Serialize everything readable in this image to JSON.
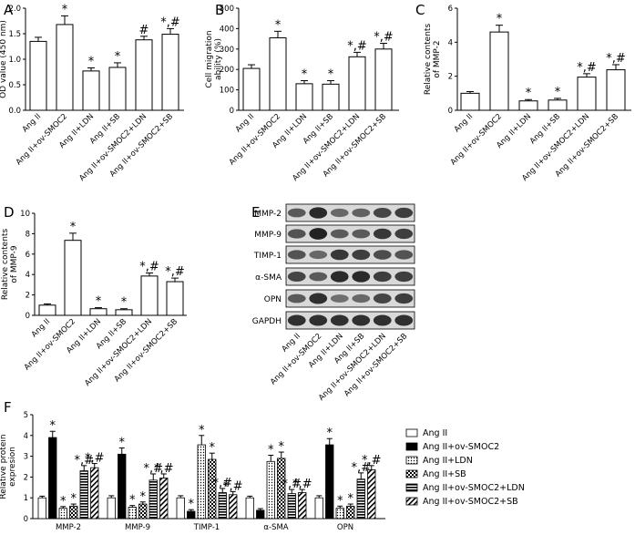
{
  "chart_data": [
    {
      "panel": "A",
      "type": "bar",
      "ylabel": "OD value (450 nm)",
      "ylim": [
        0,
        2.0
      ],
      "yticks": [
        "0.0",
        "0.5",
        "1.0",
        "1.5",
        "2.0"
      ],
      "categories": [
        "Ang II",
        "Ang II+ov-SMOC2",
        "Ang II+LDN",
        "Ang II+SB",
        "Ang II+ov-SMOC2+LDN",
        "Ang II+ov-SMOC2+SB"
      ],
      "values": [
        1.35,
        1.68,
        0.77,
        0.84,
        1.38,
        1.49
      ],
      "errors": [
        0.08,
        0.17,
        0.06,
        0.09,
        0.07,
        0.11
      ],
      "marks": [
        "",
        "*",
        "*",
        "*",
        "#",
        "*,#"
      ]
    },
    {
      "panel": "B",
      "type": "bar",
      "ylabel": "Cell migration ability (%)",
      "ylim": [
        0,
        500
      ],
      "yticks": [
        "0",
        "100",
        "200",
        "300",
        "400",
        "500"
      ],
      "categories": [
        "Ang II",
        "Ang II+ov-SMOC2",
        "Ang II+LDN",
        "Ang II+SB",
        "Ang II+ov-SMOC2+LDN",
        "Ang II+ov-SMOC2+SB"
      ],
      "values": [
        205,
        355,
        130,
        128,
        262,
        300
      ],
      "errors": [
        18,
        32,
        15,
        17,
        22,
        28
      ],
      "marks": [
        "",
        "*",
        "*",
        "*",
        "*,#",
        "*,#"
      ]
    },
    {
      "panel": "C",
      "type": "bar",
      "ylabel": "Relative contents of MMP-2",
      "ylim": [
        0,
        6
      ],
      "yticks": [
        "0",
        "2",
        "4",
        "6"
      ],
      "categories": [
        "Ang II",
        "Ang II+ov-SMOC2",
        "Ang II+LDN",
        "Ang II+SB",
        "Ang II+ov-SMOC2+LDN",
        "Ang II+ov-SMOC2+SB"
      ],
      "values": [
        1.0,
        4.6,
        0.55,
        0.6,
        1.95,
        2.38
      ],
      "errors": [
        0.1,
        0.4,
        0.08,
        0.1,
        0.2,
        0.3
      ],
      "marks": [
        "",
        "*",
        "*",
        "*",
        "*,#",
        "*,#"
      ]
    },
    {
      "panel": "D",
      "type": "bar",
      "ylabel": "Relative contents of MMP-9",
      "ylim": [
        0,
        10
      ],
      "yticks": [
        "0",
        "2",
        "4",
        "6",
        "8",
        "10"
      ],
      "categories": [
        "Ang II",
        "Ang II+ov-SMOC2",
        "Ang II+LDN",
        "Ang II+SB",
        "Ang II+ov-SMOC2+LDN",
        "Ang II+ov-SMOC2+SB"
      ],
      "values": [
        1.0,
        7.35,
        0.65,
        0.55,
        3.85,
        3.3
      ],
      "errors": [
        0.12,
        0.7,
        0.1,
        0.1,
        0.3,
        0.35
      ],
      "marks": [
        "",
        "*",
        "*",
        "*",
        "*,#",
        "*,#"
      ]
    },
    {
      "panel": "F",
      "type": "bar",
      "ylabel": "Relative protein expresion",
      "ylim": [
        0,
        5
      ],
      "yticks": [
        "0",
        "1",
        "2",
        "3",
        "4",
        "5"
      ],
      "categories": [
        "MMP-2",
        "MMP-9",
        "TIMP-1",
        "α-SMA",
        "OPN"
      ],
      "series": [
        {
          "name": "Ang II",
          "values": [
            1.0,
            1.0,
            1.0,
            1.0,
            1.0
          ],
          "errors": [
            0.08,
            0.1,
            0.1,
            0.08,
            0.1
          ]
        },
        {
          "name": "Ang II+ov-SMOC2",
          "values": [
            3.9,
            3.1,
            0.35,
            0.4,
            3.55
          ],
          "errors": [
            0.3,
            0.3,
            0.08,
            0.08,
            0.3
          ]
        },
        {
          "name": "Ang II+LDN",
          "values": [
            0.5,
            0.55,
            3.55,
            2.75,
            0.5
          ],
          "errors": [
            0.08,
            0.08,
            0.45,
            0.3,
            0.1
          ]
        },
        {
          "name": "Ang II+SB",
          "values": [
            0.6,
            0.7,
            2.85,
            2.9,
            0.6
          ],
          "errors": [
            0.1,
            0.1,
            0.3,
            0.3,
            0.1
          ]
        },
        {
          "name": "Ang II+ov-SMOC2+LDN",
          "values": [
            2.3,
            1.85,
            1.25,
            1.2,
            1.9
          ],
          "errors": [
            0.25,
            0.3,
            0.2,
            0.2,
            0.3
          ]
        },
        {
          "name": "Ang II+ov-SMOC2+SB",
          "values": [
            2.45,
            1.95,
            1.15,
            1.25,
            2.35
          ],
          "errors": [
            0.2,
            0.2,
            0.15,
            0.15,
            0.2
          ]
        }
      ],
      "marks": [
        [
          "",
          "*",
          "*",
          "*",
          "*,#",
          "*,#"
        ],
        [
          "",
          "*",
          "*",
          "*",
          "*,#",
          "*,#"
        ],
        [
          "",
          "*",
          "*",
          "*",
          "*,#",
          "*,#"
        ],
        [
          "",
          "",
          "*",
          "*",
          "*,#",
          "*,#"
        ],
        [
          "",
          "*",
          "*",
          "*",
          "*,#",
          "*,#"
        ]
      ],
      "legend_position": "right"
    }
  ],
  "panel_letters": {
    "a": "A",
    "b": "B",
    "c": "C",
    "d": "D",
    "e": "E",
    "f": "F"
  },
  "western_blot": {
    "bands": [
      "MMP-2",
      "MMP-9",
      "TIMP-1",
      "α-SMA",
      "OPN",
      "GAPDH"
    ],
    "lanes": [
      "Ang II",
      "Ang II+ov-SMOC2",
      "Ang II+LDN",
      "Ang II+SB",
      "Ang II+ov-SMOC2+LDN",
      "Ang II+ov-SMOC2+SB"
    ],
    "intensity": [
      [
        0.55,
        0.9,
        0.45,
        0.5,
        0.7,
        0.75
      ],
      [
        0.6,
        0.95,
        0.55,
        0.55,
        0.8,
        0.75
      ],
      [
        0.6,
        0.45,
        0.8,
        0.75,
        0.65,
        0.6
      ],
      [
        0.7,
        0.55,
        0.9,
        0.9,
        0.75,
        0.75
      ],
      [
        0.55,
        0.85,
        0.4,
        0.45,
        0.7,
        0.75
      ],
      [
        0.85,
        0.85,
        0.85,
        0.85,
        0.85,
        0.85
      ]
    ]
  },
  "colors": {
    "bar_edge": "#000000",
    "bar_fill": "#ffffff",
    "blot_bg": "#d9d9d9",
    "band": "#111111"
  }
}
